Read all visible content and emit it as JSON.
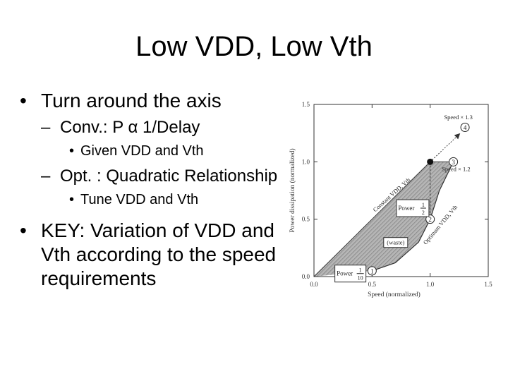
{
  "slide": {
    "title": "Low VDD, Low Vth",
    "bullet_marker": "•",
    "dash_marker": "–",
    "bullets": [
      "Turn around the axis",
      "Conv.: P α 1/Delay",
      "Given VDD and Vth",
      "Opt. : Quadratic Relationship",
      "Tune VDD and Vth",
      "KEY: Variation of VDD and Vth according to the speed requirements"
    ]
  },
  "chart_data": {
    "type": "area",
    "xlabel": "Speed (normalized)",
    "ylabel": "Power dissipation (normalized)",
    "xlim": [
      0,
      1.5
    ],
    "ylim": [
      0,
      1.5
    ],
    "x_ticks": [
      "0.0",
      "0.5",
      "1.0",
      "1.5"
    ],
    "y_ticks": [
      "0.0",
      "0.5",
      "1.0",
      "1.5"
    ],
    "series": [
      {
        "name": "Constant VDD, Vth",
        "points": [
          [
            0,
            0
          ],
          [
            0.25,
            0.25
          ],
          [
            0.5,
            0.5
          ],
          [
            0.75,
            0.75
          ],
          [
            1.0,
            1.0
          ]
        ]
      },
      {
        "name": "Optimum VDD, Vth",
        "points": [
          [
            0.5,
            0.05
          ],
          [
            0.7,
            0.12
          ],
          [
            0.9,
            0.3
          ],
          [
            1.0,
            0.5
          ],
          [
            1.08,
            0.75
          ],
          [
            1.2,
            1.0
          ]
        ]
      }
    ],
    "points": [
      {
        "label": "1",
        "x": 0.5,
        "y": 0.05
      },
      {
        "label": "2",
        "x": 1.0,
        "y": 0.5
      },
      {
        "label": "3",
        "x": 1.2,
        "y": 1.0
      },
      {
        "label": "4",
        "x": 1.3,
        "y": 1.3
      }
    ],
    "reference_point": {
      "x": 1.0,
      "y": 1.0
    },
    "annotations": {
      "speed_13": "Speed × 1.3",
      "speed_12": "Speed × 1.2",
      "power": "Power",
      "half_num": "1",
      "half_den": "2",
      "tenth_num": "1",
      "tenth_den": "10",
      "waste": "(waste)",
      "constant_label": "Constant VDD, Vth",
      "optimum_label": "Optimum VDD, Vth"
    },
    "colors": {
      "shade": "#a9a9a9",
      "line": "#333333"
    }
  }
}
